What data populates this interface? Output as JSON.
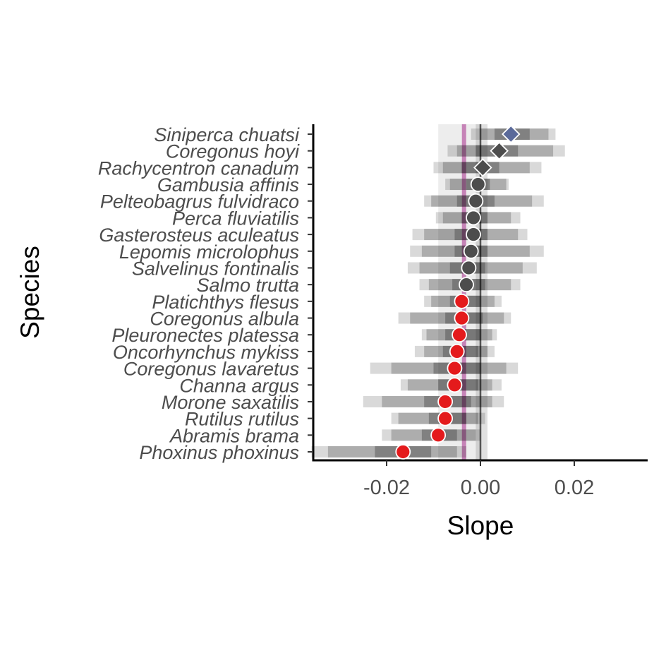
{
  "chart_data": {
    "type": "dot-interval",
    "xlabel": "Slope",
    "ylabel": "Species",
    "xlim": [
      -0.038,
      0.038
    ],
    "x_ticks": [
      -0.02,
      0.0,
      0.02
    ],
    "x_tick_labels": [
      "-0.02",
      "0.00",
      "0.02"
    ],
    "grid": false,
    "reference_lines": {
      "zero_line": 0.0,
      "mean_slope": -0.0035,
      "mean_band": [
        -0.009,
        0.0
      ],
      "zero_band": [
        -0.001,
        0.0015
      ]
    },
    "colors": {
      "negative": "#e41a1c",
      "neutral": "#4d4d4d",
      "positive": "#5b6a9a",
      "mean_line": "#b04a9a",
      "interval": "#000000"
    },
    "species": [
      {
        "name": "Siniperca chuatsi",
        "slope": 0.0065,
        "ci95": [
          -0.002,
          0.016
        ],
        "ci80": [
          0.0,
          0.0145
        ],
        "ci50": [
          0.003,
          0.0105
        ],
        "marker": "diamond",
        "status": "positive"
      },
      {
        "name": "Coregonus hoyi",
        "slope": 0.004,
        "ci95": [
          -0.007,
          0.018
        ],
        "ci80": [
          -0.005,
          0.0155
        ],
        "ci50": [
          -0.001,
          0.008
        ],
        "marker": "diamond",
        "status": "neutral"
      },
      {
        "name": "Rachycentron canadum",
        "slope": 0.0005,
        "ci95": [
          -0.01,
          0.013
        ],
        "ci80": [
          -0.008,
          0.0105
        ],
        "ci50": [
          -0.004,
          0.004
        ],
        "marker": "diamond",
        "status": "neutral"
      },
      {
        "name": "Gambusia affinis",
        "slope": -0.0005,
        "ci95": [
          -0.0075,
          0.006
        ],
        "ci80": [
          -0.0065,
          0.0055
        ],
        "ci50": [
          -0.003,
          0.002
        ],
        "marker": "circle",
        "status": "neutral"
      },
      {
        "name": "Pelteobagrus fulvidraco",
        "slope": -0.001,
        "ci95": [
          -0.012,
          0.0135
        ],
        "ci80": [
          -0.0105,
          0.011
        ],
        "ci50": [
          -0.005,
          0.003
        ],
        "marker": "circle",
        "status": "neutral"
      },
      {
        "name": "Perca fluviatilis",
        "slope": -0.0015,
        "ci95": [
          -0.0095,
          0.0085
        ],
        "ci80": [
          -0.008,
          0.0065
        ],
        "ci50": [
          -0.004,
          0.0015
        ],
        "marker": "circle",
        "status": "neutral"
      },
      {
        "name": "Gasterosteus aculeatus",
        "slope": -0.0015,
        "ci95": [
          -0.0145,
          0.01
        ],
        "ci80": [
          -0.012,
          0.008
        ],
        "ci50": [
          -0.0055,
          0.0015
        ],
        "marker": "circle",
        "status": "neutral"
      },
      {
        "name": "Lepomis microlophus",
        "slope": -0.002,
        "ci95": [
          -0.015,
          0.0135
        ],
        "ci80": [
          -0.0125,
          0.0105
        ],
        "ci50": [
          -0.0055,
          0.0015
        ],
        "marker": "circle",
        "status": "neutral"
      },
      {
        "name": "Salvelinus fontinalis",
        "slope": -0.0025,
        "ci95": [
          -0.0155,
          0.012
        ],
        "ci80": [
          -0.013,
          0.009
        ],
        "ci50": [
          -0.0065,
          0.001
        ],
        "marker": "circle",
        "status": "neutral"
      },
      {
        "name": "Salmo trutta",
        "slope": -0.003,
        "ci95": [
          -0.013,
          0.0085
        ],
        "ci80": [
          -0.011,
          0.0065
        ],
        "ci50": [
          -0.006,
          0.001
        ],
        "marker": "circle",
        "status": "neutral"
      },
      {
        "name": "Platichthys flesus",
        "slope": -0.004,
        "ci95": [
          -0.012,
          0.0045
        ],
        "ci80": [
          -0.0105,
          0.003
        ],
        "ci50": [
          -0.0065,
          0.0
        ],
        "marker": "circle",
        "status": "negative"
      },
      {
        "name": "Coregonus albula",
        "slope": -0.004,
        "ci95": [
          -0.0175,
          0.0065
        ],
        "ci80": [
          -0.015,
          0.005
        ],
        "ci50": [
          -0.0075,
          0.0005
        ],
        "marker": "circle",
        "status": "negative"
      },
      {
        "name": "Pleuronectes platessa",
        "slope": -0.0045,
        "ci95": [
          -0.0125,
          0.0035
        ],
        "ci80": [
          -0.0115,
          0.0025
        ],
        "ci50": [
          -0.0075,
          0.0
        ],
        "marker": "circle",
        "status": "negative"
      },
      {
        "name": "Oncorhynchus mykiss",
        "slope": -0.005,
        "ci95": [
          -0.014,
          0.003
        ],
        "ci80": [
          -0.012,
          0.0015
        ],
        "ci50": [
          -0.008,
          -0.0005
        ],
        "marker": "circle",
        "status": "negative"
      },
      {
        "name": "Coregonus lavaretus",
        "slope": -0.0055,
        "ci95": [
          -0.0235,
          0.008
        ],
        "ci80": [
          -0.019,
          0.0055
        ],
        "ci50": [
          -0.01,
          0.0
        ],
        "marker": "circle",
        "status": "negative"
      },
      {
        "name": "Channa argus",
        "slope": -0.0055,
        "ci95": [
          -0.017,
          0.0045
        ],
        "ci80": [
          -0.0155,
          0.0025
        ],
        "ci50": [
          -0.009,
          -0.0005
        ],
        "marker": "circle",
        "status": "negative"
      },
      {
        "name": "Morone saxatilis",
        "slope": -0.0075,
        "ci95": [
          -0.025,
          0.005
        ],
        "ci80": [
          -0.021,
          0.0025
        ],
        "ci50": [
          -0.012,
          -0.002
        ],
        "marker": "circle",
        "status": "negative"
      },
      {
        "name": "Rutilus rutilus",
        "slope": -0.0075,
        "ci95": [
          -0.019,
          0.001
        ],
        "ci80": [
          -0.0175,
          -0.0005
        ],
        "ci50": [
          -0.011,
          -0.003
        ],
        "marker": "circle",
        "status": "negative"
      },
      {
        "name": "Abramis brama",
        "slope": -0.009,
        "ci95": [
          -0.021,
          0.0
        ],
        "ci80": [
          -0.019,
          -0.001
        ],
        "ci50": [
          -0.0125,
          -0.005
        ],
        "marker": "circle",
        "status": "negative"
      },
      {
        "name": "Phoxinus phoxinus",
        "slope": -0.0165,
        "ci95": [
          -0.036,
          -0.003
        ],
        "ci80": [
          -0.0325,
          -0.005
        ],
        "ci50": [
          -0.0225,
          -0.0105
        ],
        "marker": "circle",
        "status": "negative"
      }
    ]
  }
}
